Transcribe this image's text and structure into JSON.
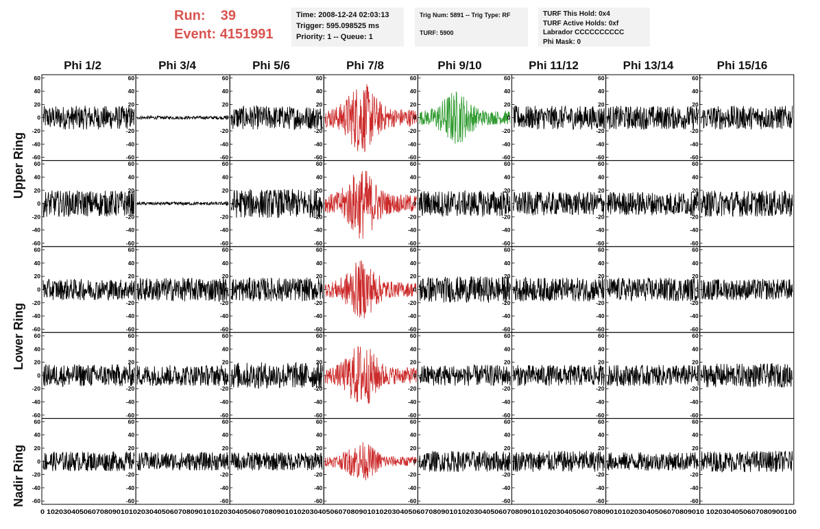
{
  "header": {
    "run_label": "Run:",
    "run_value": "39",
    "event_label": "Event:",
    "event_value": "4151991"
  },
  "info1": {
    "time": "Time: 2008-12-24 02:03:13",
    "trigger": "Trigger: 595.098525 ms",
    "priority": "Priority: 1 -- Queue: 1"
  },
  "info2": {
    "trig": "Trig Num: 5891 -- Trig Type: RF",
    "turf": "TURF: 5900"
  },
  "info3": {
    "hold": "TURF This Hold: 0x4",
    "active": "TURF Active Holds: 0xf",
    "labrador": "Labrador CCCCCCCCCC",
    "phimask": "Phi Mask: 0"
  },
  "columns": [
    "Phi 1/2",
    "Phi 3/4",
    "Phi 5/6",
    "Phi 7/8",
    "Phi 9/10",
    "Phi 11/12",
    "Phi 13/14",
    "Phi 15/16"
  ],
  "rows": [
    "Upper Ring",
    "Lower Ring",
    "Nadir Ring"
  ],
  "colors": {
    "normal": "#000000",
    "triggered": "#cc2a2a",
    "highlight": "#2e9a2e",
    "title_red": "#d9534f"
  },
  "chart_data": {
    "type": "line",
    "panel_grid": {
      "rows": 5,
      "cols": 8
    },
    "ylim": [
      -65,
      65
    ],
    "y_ticks": [
      -60,
      -40,
      -20,
      0,
      20,
      40,
      60
    ],
    "xlim": [
      0,
      100
    ],
    "x_tick_labels": [
      "0",
      "10",
      "20",
      "30",
      "40",
      "50",
      "60",
      "70",
      "80",
      "90",
      "100"
    ],
    "x_tick_label_text": "0 1020304050607080901010203040506070809010102030405060708090101020304050607080901010203040506070809010102030405060708090101020304050607080901010203040506070809010 1020304050607080900100",
    "panel_styles": [
      [
        "normal",
        "flat",
        "normal",
        "triggered",
        "highlight",
        "normal",
        "normal",
        "normal"
      ],
      [
        "normal",
        "flat",
        "normal",
        "triggered",
        "normal",
        "normal",
        "normal",
        "normal"
      ],
      [
        "normal",
        "normal",
        "normal",
        "triggered",
        "normal",
        "normal",
        "normal",
        "normal"
      ],
      [
        "normal",
        "normal",
        "normal",
        "triggered",
        "normal",
        "normal",
        "normal",
        "normal"
      ],
      [
        "normal",
        "normal",
        "normal",
        "triggered",
        "normal",
        "normal",
        "normal",
        "normal"
      ]
    ],
    "series": [
      {
        "name": "",
        "amplitude": [
          [
            18,
            4,
            18,
            55,
            42,
            18,
            18,
            18
          ],
          [
            20,
            3,
            22,
            55,
            20,
            18,
            18,
            20
          ],
          [
            16,
            18,
            18,
            45,
            20,
            18,
            18,
            16
          ],
          [
            17,
            16,
            20,
            50,
            16,
            16,
            16,
            18
          ],
          [
            15,
            14,
            14,
            30,
            16,
            16,
            14,
            16
          ]
        ]
      }
    ]
  }
}
